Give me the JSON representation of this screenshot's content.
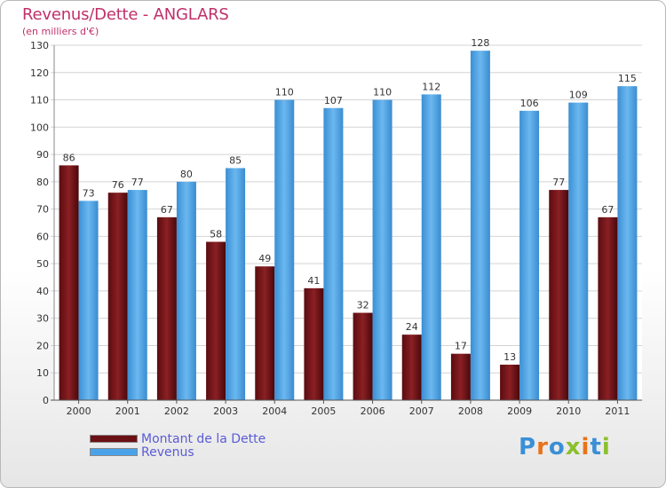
{
  "header": {
    "title": "Revenus/Dette - ANGLARS",
    "subtitle": "(en milliers d'€)"
  },
  "legend": {
    "items": [
      {
        "label": "Montant de la Dette",
        "color": "#7a1418"
      },
      {
        "label": "Revenus",
        "color": "#4aa3e8"
      }
    ]
  },
  "logo": {
    "text": "Proxiti",
    "letters": [
      "P",
      "r",
      "o",
      "x",
      "i",
      "t",
      "i"
    ],
    "colors": [
      "#3a8fd6",
      "#e8731a",
      "#3a8fd6",
      "#8bbf2c",
      "#e8731a",
      "#3a8fd6",
      "#8bbf2c"
    ]
  },
  "chart_data": {
    "type": "bar",
    "categories": [
      "2000",
      "2001",
      "2002",
      "2003",
      "2004",
      "2005",
      "2006",
      "2007",
      "2008",
      "2009",
      "2010",
      "2011"
    ],
    "series": [
      {
        "name": "Montant de la Dette",
        "values": [
          86,
          76,
          67,
          58,
          49,
          41,
          32,
          24,
          17,
          13,
          77,
          67
        ],
        "color": "#7a1418"
      },
      {
        "name": "Revenus",
        "values": [
          73,
          77,
          80,
          85,
          110,
          107,
          110,
          112,
          128,
          106,
          109,
          115
        ],
        "color": "#4aa3e8"
      }
    ],
    "ylim": [
      0,
      130
    ],
    "yticks": [
      0,
      10,
      20,
      30,
      40,
      50,
      60,
      70,
      80,
      90,
      100,
      110,
      120,
      130
    ],
    "grid": true
  }
}
